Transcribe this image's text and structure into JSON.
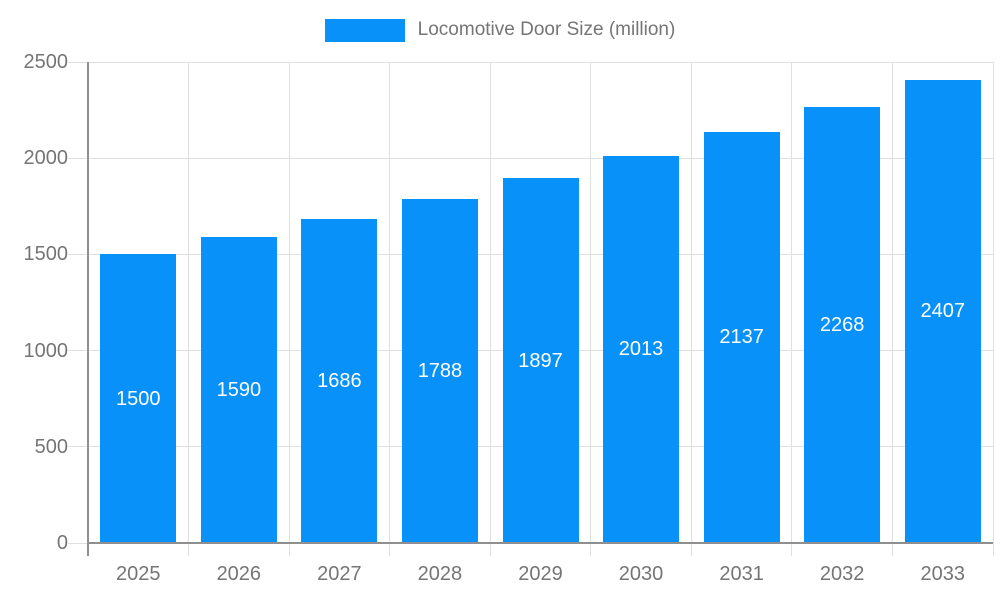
{
  "legend": {
    "label": "Locomotive Door Size (million)"
  },
  "chart_data": {
    "type": "bar",
    "title": "",
    "categories": [
      "2025",
      "2026",
      "2027",
      "2028",
      "2029",
      "2030",
      "2031",
      "2032",
      "2033"
    ],
    "series": [
      {
        "name": "Locomotive Door Size (million)",
        "values": [
          1500,
          1590,
          1686,
          1788,
          1897,
          2013,
          2137,
          2268,
          2407
        ]
      }
    ],
    "xlabel": "",
    "ylabel": "",
    "ylim": [
      0,
      2500
    ],
    "yticks": [
      0,
      500,
      1000,
      1500,
      2000,
      2500
    ],
    "grid": "on",
    "legend_position": "top-center",
    "value_labels": "inside-center",
    "colors": {
      "bar": "#0991fa",
      "value_label": "#ffffff",
      "axis_text": "#757575",
      "grid_line": "#e0e0e0",
      "axis_line": "#8f8f8f",
      "background": "#ffffff"
    }
  }
}
